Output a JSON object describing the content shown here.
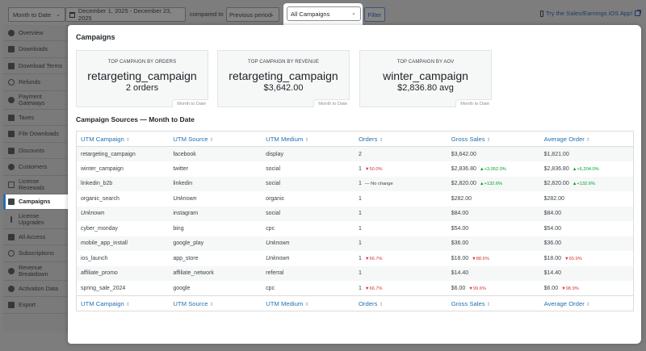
{
  "topbar": {
    "period_select": "Month to Date",
    "date_range": "December 1, 2025 - December 23, 2025",
    "compared_to_label": "compared to",
    "compare_select": "Previous period",
    "campaign_select": "All Campaigns",
    "filter_button": "Filter",
    "ios_app_link": "Try the Sales/Earnings iOS App!"
  },
  "sidebar": {
    "items": [
      {
        "label": "Overview",
        "icon": "dashboard-icon"
      },
      {
        "label": "Downloads",
        "icon": "download-icon"
      },
      {
        "label": "Download Terms",
        "icon": "folder-icon"
      },
      {
        "label": "Refunds",
        "icon": "undo-icon"
      },
      {
        "label": "Payment Gateways",
        "icon": "networking-icon"
      },
      {
        "label": "Taxes",
        "icon": "tax-icon"
      },
      {
        "label": "File Downloads",
        "icon": "download-icon"
      },
      {
        "label": "Discounts",
        "icon": "tickets-icon"
      },
      {
        "label": "Customers",
        "icon": "groups-icon"
      },
      {
        "label": "License Renewals",
        "icon": "renewal-icon"
      },
      {
        "label": "Campaigns",
        "icon": "megaphone-icon",
        "active": true
      },
      {
        "label": "License Upgrades",
        "icon": "arrow-up-icon"
      },
      {
        "label": "All Access",
        "icon": "calendar-icon"
      },
      {
        "label": "Subscriptions",
        "icon": "update-icon"
      },
      {
        "label": "Revenue Breakdown",
        "icon": "pie-chart-icon"
      },
      {
        "label": "Activation Data",
        "icon": "globe-icon"
      },
      {
        "label": "Export",
        "icon": "export-icon"
      }
    ]
  },
  "panel": {
    "title": "Campaigns",
    "cards": [
      {
        "label": "TOP CAMPAIGN BY ORDERS",
        "name": "retargeting_campaign",
        "value": "2 orders",
        "tag": "Month to Date"
      },
      {
        "label": "TOP CAMPAIGN BY REVENUE",
        "name": "retargeting_campaign",
        "value": "$3,642.00",
        "tag": "Month to Date"
      },
      {
        "label": "TOP CAMPAIGN BY AOV",
        "name": "winter_campaign",
        "value": "$2,836.80 avg",
        "tag": "Month to Date"
      }
    ],
    "section_title": "Campaign Sources — Month to Date",
    "table": {
      "columns": [
        "UTM Campaign",
        "UTM Source",
        "UTM Medium",
        "Orders",
        "Gross Sales",
        "Average Order"
      ],
      "sort_glyph": "⇕",
      "rows": [
        {
          "campaign": "retargeting_campaign",
          "source": "facebook",
          "medium": "display",
          "orders": "2",
          "orders_chg": "",
          "orders_dir": "",
          "gross": "$3,642.00",
          "gross_chg": "",
          "gross_dir": "",
          "avg": "$1,821.00",
          "avg_chg": "",
          "avg_dir": ""
        },
        {
          "campaign": "winter_campaign",
          "source": "twitter",
          "medium": "social",
          "orders": "1",
          "orders_chg": "▼50.0%",
          "orders_dir": "down",
          "gross": "$2,836.80",
          "gross_chg": "▲+3,052.0%",
          "gross_dir": "up",
          "avg": "$2,836.80",
          "avg_chg": "▲+6,204.0%",
          "avg_dir": "up"
        },
        {
          "campaign": "linkedin_b2b",
          "source": "linkedin",
          "medium": "social",
          "orders": "1",
          "orders_chg": "— No change",
          "orders_dir": "flat",
          "gross": "$2,820.00",
          "gross_chg": "▲+132.6%",
          "gross_dir": "up",
          "avg": "$2,820.00",
          "avg_chg": "▲+132.6%",
          "avg_dir": "up"
        },
        {
          "campaign": "organic_search",
          "source": "Unknown",
          "source_unknown": true,
          "medium": "organic",
          "orders": "1",
          "orders_chg": "",
          "orders_dir": "",
          "gross": "$282.00",
          "gross_chg": "",
          "gross_dir": "",
          "avg": "$282.00",
          "avg_chg": "",
          "avg_dir": ""
        },
        {
          "campaign": "Unknown",
          "campaign_unknown": true,
          "source": "instagram",
          "medium": "social",
          "orders": "1",
          "orders_chg": "",
          "orders_dir": "",
          "gross": "$84.00",
          "gross_chg": "",
          "gross_dir": "",
          "avg": "$84.00",
          "avg_chg": "",
          "avg_dir": ""
        },
        {
          "campaign": "cyber_monday",
          "source": "bing",
          "medium": "cpc",
          "orders": "1",
          "orders_chg": "",
          "orders_dir": "",
          "gross": "$54.00",
          "gross_chg": "",
          "gross_dir": "",
          "avg": "$54.00",
          "avg_chg": "",
          "avg_dir": ""
        },
        {
          "campaign": "mobile_app_install",
          "source": "google_play",
          "medium": "Unknown",
          "medium_unknown": true,
          "orders": "1",
          "orders_chg": "",
          "orders_dir": "",
          "gross": "$36.00",
          "gross_chg": "",
          "gross_dir": "",
          "avg": "$36.00",
          "avg_chg": "",
          "avg_dir": ""
        },
        {
          "campaign": "ios_launch",
          "source": "app_store",
          "medium": "Unknown",
          "medium_unknown": true,
          "orders": "1",
          "orders_chg": "▼66.7%",
          "orders_dir": "down",
          "gross": "$18.00",
          "gross_chg": "▼88.6%",
          "gross_dir": "down",
          "avg": "$18.00",
          "avg_chg": "▼65.9%",
          "avg_dir": "down"
        },
        {
          "campaign": "affiliate_promo",
          "source": "affiliate_network",
          "medium": "referral",
          "orders": "1",
          "orders_chg": "",
          "orders_dir": "",
          "gross": "$14.40",
          "gross_chg": "",
          "gross_dir": "",
          "avg": "$14.40",
          "avg_chg": "",
          "avg_dir": ""
        },
        {
          "campaign": "spring_sale_2024",
          "source": "google",
          "medium": "cpc",
          "orders": "1",
          "orders_chg": "▼66.7%",
          "orders_dir": "down",
          "gross": "$6.00",
          "gross_chg": "▼99.6%",
          "gross_dir": "down",
          "avg": "$6.00",
          "avg_chg": "▼98.9%",
          "avg_dir": "down"
        }
      ]
    }
  }
}
